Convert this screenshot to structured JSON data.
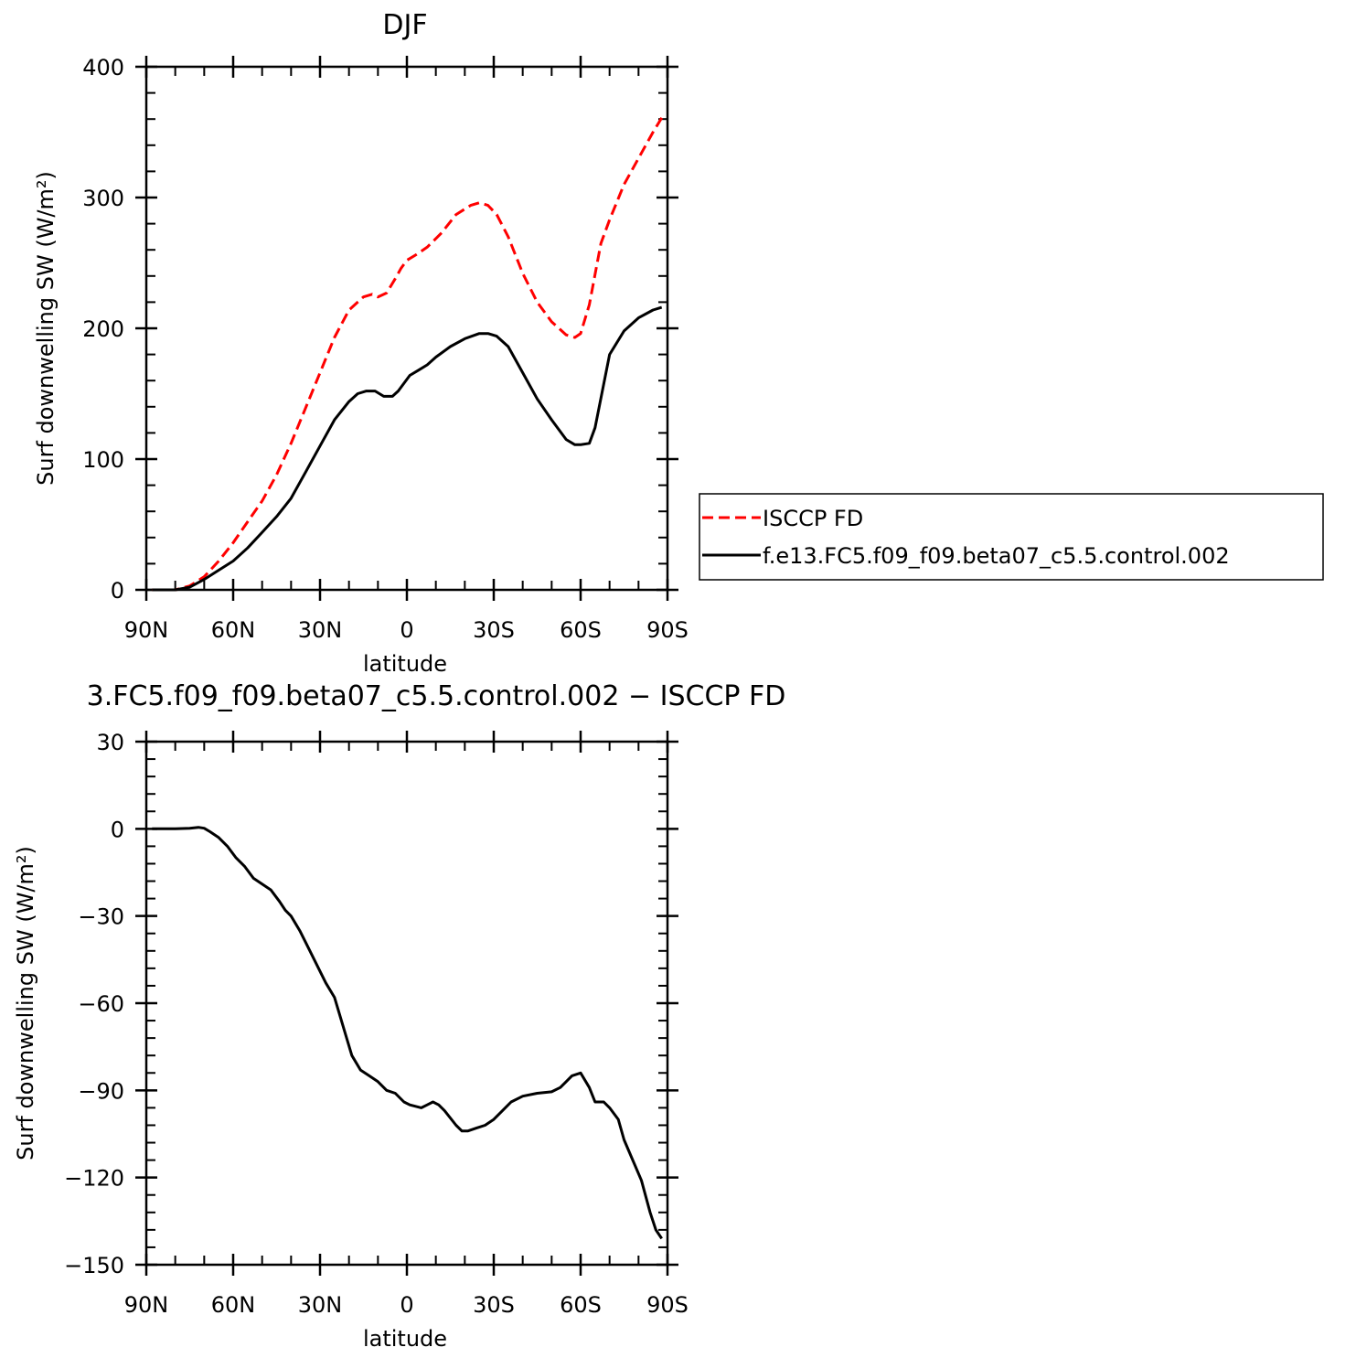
{
  "chart_data": [
    {
      "type": "line",
      "title": "DJF",
      "xlabel": "latitude",
      "ylabel": "Surf downwelling SW (W/m²)",
      "xlim": [
        -90,
        90
      ],
      "ylim": [
        0,
        400
      ],
      "x_ticks": [
        -90,
        -60,
        -30,
        0,
        30,
        60,
        90
      ],
      "x_tick_labels": [
        "90N",
        "60N",
        "30N",
        "0",
        "30S",
        "60S",
        "90S"
      ],
      "y_ticks": [
        0,
        100,
        200,
        300,
        400
      ],
      "y_tick_labels": [
        "0",
        "100",
        "200",
        "300",
        "400"
      ],
      "grid": false,
      "legend": {
        "placement": "right",
        "entries": [
          "ISCCP FD",
          "f.e13.FC5.f09_f09.beta07_c5.5.control.002"
        ]
      },
      "series": [
        {
          "name": "ISCCP FD",
          "color": "#ff0000",
          "dash": "dashed",
          "x": [
            -88,
            -80,
            -75,
            -70,
            -65,
            -60,
            -55,
            -50,
            -45,
            -40,
            -35,
            -30,
            -25,
            -20,
            -15,
            -12,
            -10,
            -7,
            -4,
            -2,
            0,
            3,
            7,
            12,
            17,
            22,
            25,
            28,
            31,
            35,
            40,
            45,
            50,
            55,
            58,
            60,
            63,
            67,
            70,
            75,
            80,
            85,
            88
          ],
          "y": [
            0,
            0,
            3,
            10,
            22,
            36,
            52,
            68,
            88,
            112,
            139,
            166,
            193,
            214,
            224,
            226,
            224,
            227,
            238,
            246,
            252,
            256,
            262,
            273,
            287,
            294,
            296,
            294,
            287,
            270,
            242,
            220,
            205,
            195,
            193,
            196,
            218,
            265,
            283,
            310,
            330,
            350,
            361
          ]
        },
        {
          "name": "f.e13.FC5.f09_f09.beta07_c5.5.control.002",
          "color": "#000000",
          "dash": "solid",
          "x": [
            -88,
            -80,
            -75,
            -70,
            -65,
            -60,
            -55,
            -50,
            -45,
            -40,
            -35,
            -30,
            -25,
            -20,
            -17,
            -14,
            -11,
            -8,
            -5,
            -3,
            -1,
            1,
            4,
            7,
            10,
            15,
            20,
            25,
            28,
            31,
            35,
            40,
            45,
            50,
            55,
            58,
            60,
            63,
            65,
            70,
            75,
            80,
            85,
            88
          ],
          "y": [
            0,
            0,
            2,
            8,
            15,
            22,
            32,
            44,
            56,
            70,
            90,
            110,
            130,
            144,
            150,
            152,
            152,
            148,
            148,
            152,
            158,
            164,
            168,
            172,
            178,
            186,
            192,
            196,
            196,
            194,
            186,
            166,
            146,
            130,
            115,
            111,
            111,
            112,
            124,
            180,
            198,
            208,
            214,
            216
          ]
        }
      ]
    },
    {
      "type": "line",
      "title": "3.FC5.f09_f09.beta07_c5.5.control.002 − ISCCP FD",
      "xlabel": "latitude",
      "ylabel": "Surf downwelling SW (W/m²)",
      "xlim": [
        -90,
        90
      ],
      "ylim": [
        -150,
        30
      ],
      "x_ticks": [
        -90,
        -60,
        -30,
        0,
        30,
        60,
        90
      ],
      "x_tick_labels": [
        "90N",
        "60N",
        "30N",
        "0",
        "30S",
        "60S",
        "90S"
      ],
      "y_ticks": [
        -150,
        -120,
        -90,
        -60,
        -30,
        0,
        30
      ],
      "y_tick_labels": [
        "−150",
        "−120",
        "−90",
        "−60",
        "−30",
        "0",
        "30"
      ],
      "grid": false,
      "series": [
        {
          "color": "#000000",
          "dash": "solid",
          "x": [
            -88,
            -80,
            -75,
            -72,
            -70,
            -68,
            -65,
            -62,
            -59,
            -56,
            -53,
            -50,
            -47,
            -44,
            -42,
            -40,
            -37,
            -34,
            -31,
            -28,
            -25,
            -22,
            -19,
            -16,
            -13,
            -10,
            -7,
            -4,
            -1,
            1,
            5,
            7,
            9,
            11,
            13,
            17,
            19,
            21,
            24,
            27,
            30,
            33,
            36,
            40,
            45,
            50,
            53,
            55,
            57,
            60,
            63,
            65,
            68,
            70,
            73,
            75,
            78,
            81,
            84,
            86,
            88
          ],
          "y": [
            0,
            0,
            0.2,
            0.5,
            0.2,
            -1,
            -3,
            -6,
            -10,
            -13,
            -17,
            -19,
            -21,
            -25,
            -28,
            -30,
            -35,
            -41,
            -47,
            -53,
            -58,
            -68,
            -78,
            -83,
            -85,
            -87,
            -90,
            -91,
            -94,
            -95,
            -96,
            -95,
            -94,
            -95,
            -97,
            -102,
            -104,
            -104,
            -103,
            -102,
            -100,
            -97,
            -94,
            -92,
            -91,
            -90.5,
            -89,
            -87,
            -85,
            -84,
            -89,
            -94,
            -94,
            -96,
            -100,
            -107,
            -114,
            -121,
            -132,
            -138,
            -141
          ]
        }
      ]
    }
  ]
}
